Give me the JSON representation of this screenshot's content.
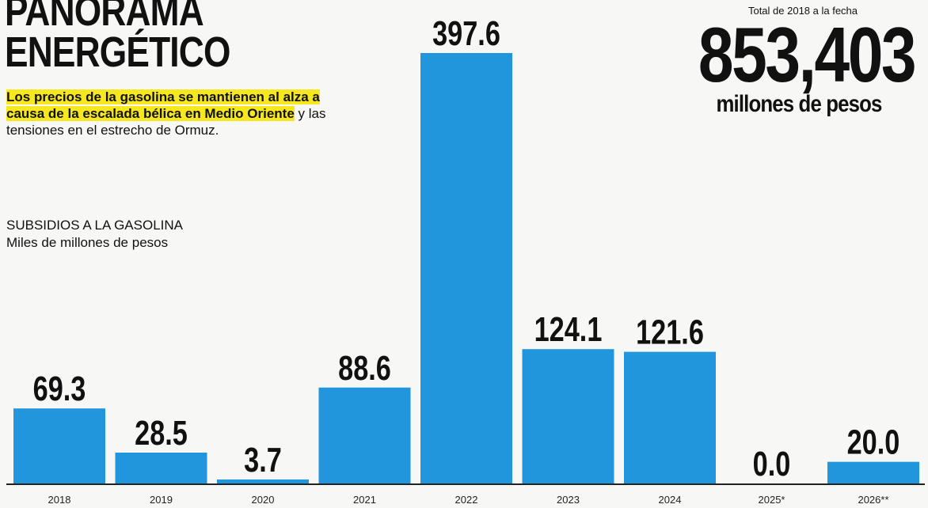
{
  "header": {
    "title_line1": "PANORAMA",
    "title_line2": "ENERGÉTICO",
    "intro_highlight": "Los precios de la gasolina se mantienen al alza a causa de la escalada bélica en Medio Oriente",
    "intro_rest": " y las  tensiones en el estrecho de Ormuz."
  },
  "total": {
    "label": "Total de 2018 a la fecha",
    "value": "853,403",
    "unit": "millones de pesos"
  },
  "chart_data": {
    "type": "bar",
    "title": "SUBSIDIOS A LA GASOLINA",
    "subtitle": "Miles de millones de pesos",
    "categories": [
      "2018",
      "2019",
      "2020",
      "2021",
      "2022",
      "2023",
      "2024",
      "2025*",
      "2026**"
    ],
    "values": [
      69.3,
      28.5,
      3.7,
      88.6,
      397.6,
      124.1,
      121.6,
      0.0,
      20.0
    ],
    "value_labels": [
      "69.3",
      "28.5",
      "3.7",
      "88.6",
      "397.6",
      "124.1",
      "121.6",
      "0.0",
      "20.0"
    ],
    "ylim": [
      0,
      397.6
    ],
    "grid": false,
    "bar_color": "#2196dc"
  }
}
